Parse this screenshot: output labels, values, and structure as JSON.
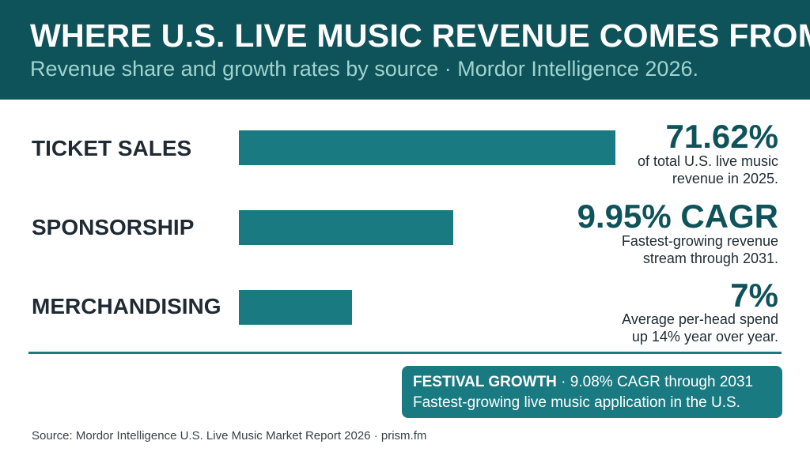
{
  "header": {
    "title": "WHERE U.S. LIVE MUSIC REVENUE COMES FROM",
    "subtitle": "Revenue share and growth rates by source · Mordor Intelligence 2026."
  },
  "chart_data": {
    "type": "bar",
    "orientation": "horizontal",
    "title": "WHERE U.S. LIVE MUSIC REVENUE COMES FROM",
    "subtitle": "Revenue share and growth rates by source · Mordor Intelligence 2026.",
    "categories": [
      "TICKET SALES",
      "SPONSORSHIP",
      "MERCHANDISING"
    ],
    "values": [
      71.62,
      9.95,
      7
    ],
    "bar_color": "#1a7a82",
    "annotations": [
      {
        "value": "71.62%",
        "desc1": "of total U.S. live music",
        "desc2": "revenue in 2025."
      },
      {
        "value": "9.95% CAGR",
        "desc1": "Fastest-growing revenue",
        "desc2": "stream through 2031."
      },
      {
        "value": "7%",
        "desc1": "Average per-head spend",
        "desc2": "up 14% year over year."
      }
    ],
    "xlabel": "",
    "ylabel": ""
  },
  "callout": {
    "bold": "FESTIVAL GROWTH",
    "rest": " · 9.08% CAGR through 2031",
    "line2": "Fastest-growing live music application in the U.S."
  },
  "source": "Source: Mordor Intelligence U.S. Live Music Market Report 2026 · prism.fm",
  "colors": {
    "header_bg": "#0f535a",
    "accent": "#1a7a82",
    "subtitle": "#9fd3cf",
    "text": "#1f2a33"
  }
}
